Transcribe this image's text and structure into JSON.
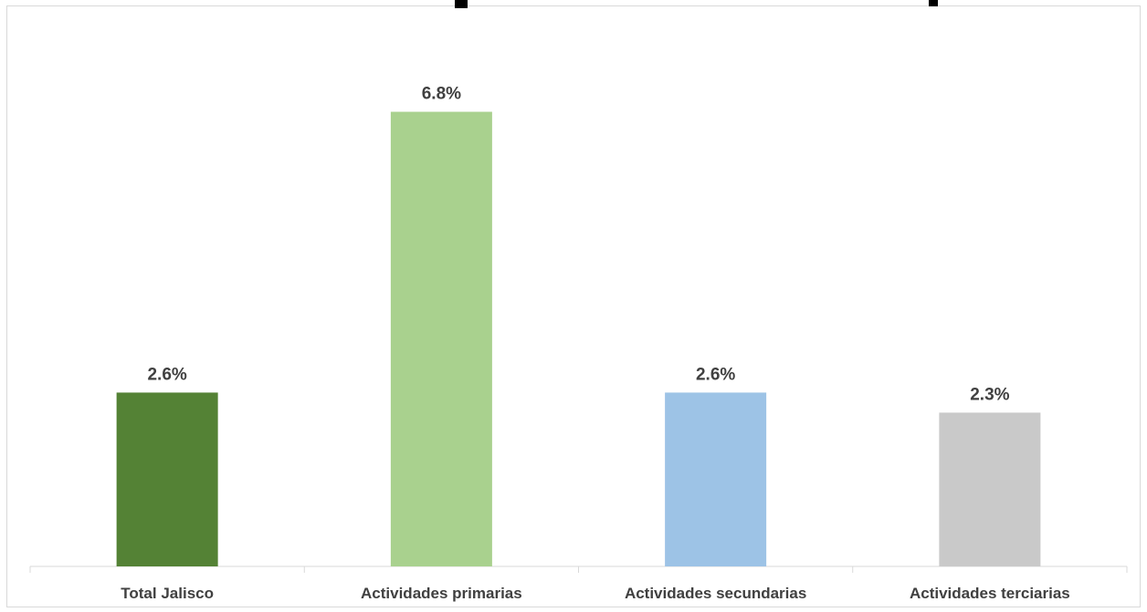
{
  "chart_data": {
    "type": "bar",
    "title": "",
    "xlabel": "",
    "ylabel": "",
    "categories": [
      "Total Jalisco",
      "Actividades primarias",
      "Actividades secundarias",
      "Actividades terciarias"
    ],
    "values": [
      2.6,
      6.8,
      2.6,
      2.3
    ],
    "value_labels": [
      "2.6%",
      "6.8%",
      "2.6%",
      "2.3%"
    ],
    "colors": [
      "#548235",
      "#a9d18e",
      "#9dc3e6",
      "#c9c9c9"
    ],
    "ylim": [
      0,
      7.5
    ],
    "grid": false,
    "legend": "none"
  }
}
